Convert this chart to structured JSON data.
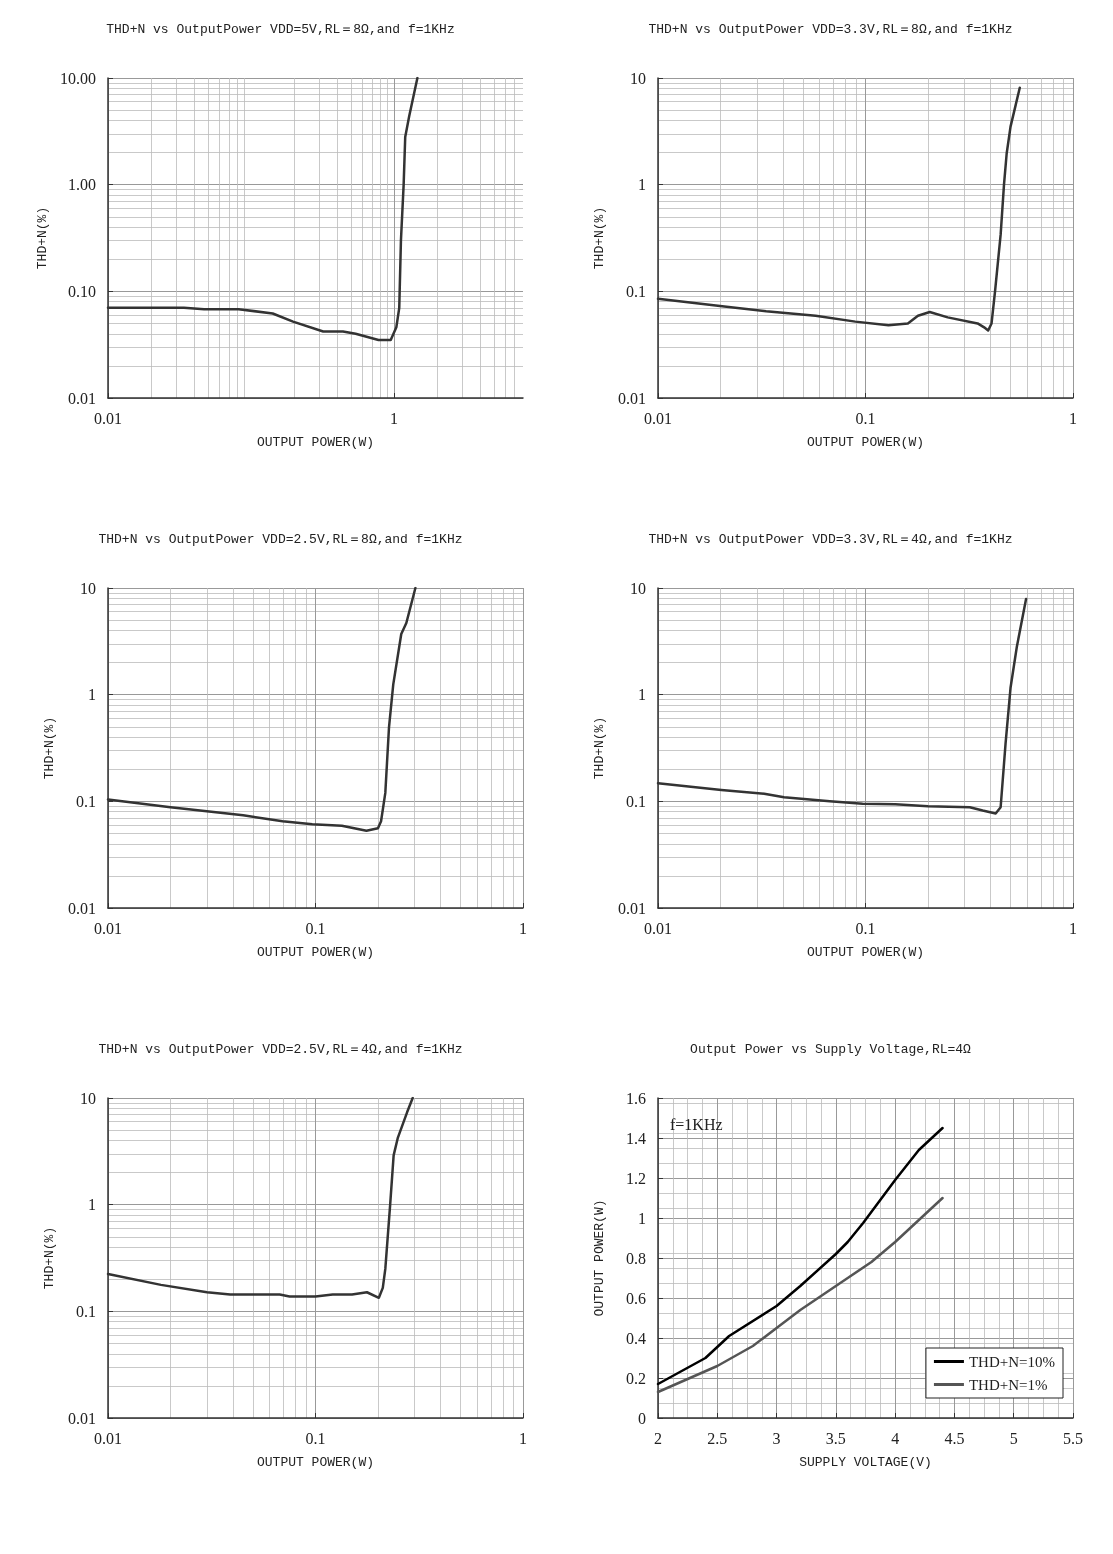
{
  "chart_data": [
    {
      "type": "line",
      "title": "THD+N vs OutputPower VDD=5V,RL＝8Ω,and f=1KHz",
      "xlabel": "OUTPUT POWER(W)",
      "ylabel": "THD+N(%)",
      "log": "xy",
      "xlim": [
        0.01,
        8
      ],
      "ylim": [
        0.01,
        10
      ],
      "xticks": [
        0.01,
        1
      ],
      "yticks": [
        {
          "value": 0.01,
          "label": "0.01"
        },
        {
          "value": 0.1,
          "label": "0.10"
        },
        {
          "value": 1,
          "label": "1.00"
        },
        {
          "value": 10,
          "label": "10.00"
        }
      ],
      "grid": true,
      "marker": "none",
      "line_style": "solid",
      "series": [
        {
          "color": "#333333",
          "x": [
            0.01,
            0.034,
            0.047,
            0.082,
            0.142,
            0.197,
            0.32,
            0.44,
            0.54,
            0.78,
            0.95,
            1.04,
            1.09,
            1.12,
            1.17,
            1.2,
            1.28,
            1.46
          ],
          "values": [
            0.07,
            0.07,
            0.068,
            0.068,
            0.062,
            0.052,
            0.042,
            0.042,
            0.04,
            0.035,
            0.035,
            0.046,
            0.07,
            0.3,
            1.0,
            2.8,
            4.4,
            10
          ]
        }
      ]
    },
    {
      "type": "line",
      "title": "THD+N vs OutputPower VDD=3.3V,RL＝8Ω,and f=1KHz",
      "xlabel": "OUTPUT POWER(W)",
      "ylabel": "THD+N(%)",
      "log": "xy",
      "xlim": [
        0.01,
        1
      ],
      "ylim": [
        0.01,
        10
      ],
      "xticks": [
        0.01,
        0.1,
        1
      ],
      "yticks": [
        0.01,
        0.1,
        1,
        10
      ],
      "grid": true,
      "marker": "none",
      "line_style": "solid",
      "series": [
        {
          "color": "#333333",
          "x": [
            0.01,
            0.0199,
            0.0332,
            0.0575,
            0.0893,
            0.129,
            0.16,
            0.179,
            0.204,
            0.249,
            0.347,
            0.373,
            0.39,
            0.405,
            0.421,
            0.448,
            0.465,
            0.479,
            0.5,
            0.554
          ],
          "values": [
            0.085,
            0.073,
            0.065,
            0.059,
            0.052,
            0.048,
            0.05,
            0.059,
            0.064,
            0.057,
            0.05,
            0.046,
            0.043,
            0.05,
            0.1,
            0.34,
            1.0,
            1.96,
            3.5,
            8.1
          ]
        }
      ]
    },
    {
      "type": "line",
      "title": "THD+N vs OutputPower VDD=2.5V,RL＝8Ω,and f=1KHz",
      "xlabel": "OUTPUT POWER(W)",
      "ylabel": "THD+N(%)",
      "log": "xy",
      "xlim": [
        0.01,
        1
      ],
      "ylim": [
        0.01,
        10
      ],
      "xticks": [
        0.01,
        0.1,
        1
      ],
      "yticks": [
        0.01,
        0.1,
        1,
        10
      ],
      "grid": true,
      "marker": "none",
      "line_style": "solid",
      "series": [
        {
          "color": "#333333",
          "x": [
            0.01,
            0.02,
            0.0448,
            0.0694,
            0.0965,
            0.134,
            0.176,
            0.2,
            0.207,
            0.217,
            0.226,
            0.237,
            0.259,
            0.274,
            0.303
          ],
          "values": [
            0.104,
            0.088,
            0.074,
            0.065,
            0.061,
            0.059,
            0.053,
            0.056,
            0.065,
            0.12,
            0.49,
            1.25,
            3.7,
            4.7,
            10
          ]
        }
      ]
    },
    {
      "type": "line",
      "title": "THD+N vs OutputPower VDD=3.3V,RL＝4Ω,and f=1KHz",
      "xlabel": "OUTPUT POWER(W)",
      "ylabel": "THD+N(%)",
      "log": "xy",
      "xlim": [
        0.01,
        1
      ],
      "ylim": [
        0.01,
        10
      ],
      "xticks": [
        0.01,
        0.1,
        1
      ],
      "yticks": [
        0.01,
        0.1,
        1,
        10
      ],
      "grid": true,
      "marker": "none",
      "line_style": "solid",
      "series": [
        {
          "color": "#333333",
          "x": [
            0.01,
            0.0202,
            0.0325,
            0.0405,
            0.0673,
            0.0968,
            0.139,
            0.2,
            0.318,
            0.367,
            0.424,
            0.448,
            0.473,
            0.5,
            0.536,
            0.594
          ],
          "values": [
            0.148,
            0.128,
            0.118,
            0.109,
            0.1,
            0.095,
            0.094,
            0.09,
            0.088,
            0.082,
            0.077,
            0.088,
            0.345,
            1.16,
            2.8,
            7.9
          ]
        }
      ]
    },
    {
      "type": "line",
      "title": "THD+N vs OutputPower VDD=2.5V,RL＝4Ω,and f=1KHz",
      "xlabel": "OUTPUT POWER(W)",
      "ylabel": "THD+N(%)",
      "log": "xy",
      "xlim": [
        0.01,
        1
      ],
      "ylim": [
        0.01,
        10
      ],
      "xticks": [
        0.01,
        0.1,
        1
      ],
      "yticks": [
        0.01,
        0.1,
        1,
        10
      ],
      "grid": true,
      "marker": "none",
      "line_style": "solid",
      "series": [
        {
          "color": "#333333",
          "x": [
            0.01,
            0.018,
            0.03,
            0.0388,
            0.0672,
            0.075,
            0.1,
            0.121,
            0.15,
            0.177,
            0.202,
            0.211,
            0.217,
            0.229,
            0.238,
            0.249,
            0.276,
            0.294
          ],
          "values": [
            0.224,
            0.177,
            0.151,
            0.144,
            0.144,
            0.138,
            0.138,
            0.144,
            0.144,
            0.151,
            0.134,
            0.166,
            0.25,
            1.0,
            2.9,
            4.2,
            7.3,
            10
          ]
        }
      ]
    },
    {
      "type": "line",
      "title": "Output Power vs Supply Voltage,RL=4Ω",
      "xlabel": "SUPPLY VOLTAGE(V)",
      "ylabel": "OUTPUT POWER(W)",
      "xlim": [
        2,
        5.5
      ],
      "ylim": [
        0,
        1.6
      ],
      "xticks": [
        2,
        2.5,
        3,
        3.5,
        4,
        4.5,
        5,
        5.5
      ],
      "yticks": [
        0,
        0.2,
        0.4,
        0.6,
        0.8,
        1,
        1.2,
        1.4,
        1.6
      ],
      "grid": true,
      "legend": "bottom right",
      "marker": "none",
      "line_style": "solid",
      "annotations": [
        "f=1KHz"
      ],
      "series": [
        {
          "name": "THD+N=10%",
          "color": "#000000",
          "x": [
            2,
            2.4,
            2.6,
            3.0,
            3.2,
            3.5,
            3.6,
            3.73,
            4.0,
            4.2,
            4.4
          ],
          "values": [
            0.17,
            0.3,
            0.41,
            0.56,
            0.66,
            0.82,
            0.88,
            0.975,
            1.19,
            1.34,
            1.45
          ]
        },
        {
          "name": "THD+N=1%",
          "color": "#555555",
          "x": [
            2,
            2.5,
            2.8,
            3.0,
            3.2,
            3.4,
            3.6,
            3.8,
            4.0,
            4.2,
            4.4
          ],
          "values": [
            0.13,
            0.26,
            0.36,
            0.45,
            0.54,
            0.62,
            0.7,
            0.78,
            0.88,
            0.99,
            1.1
          ]
        }
      ]
    }
  ]
}
